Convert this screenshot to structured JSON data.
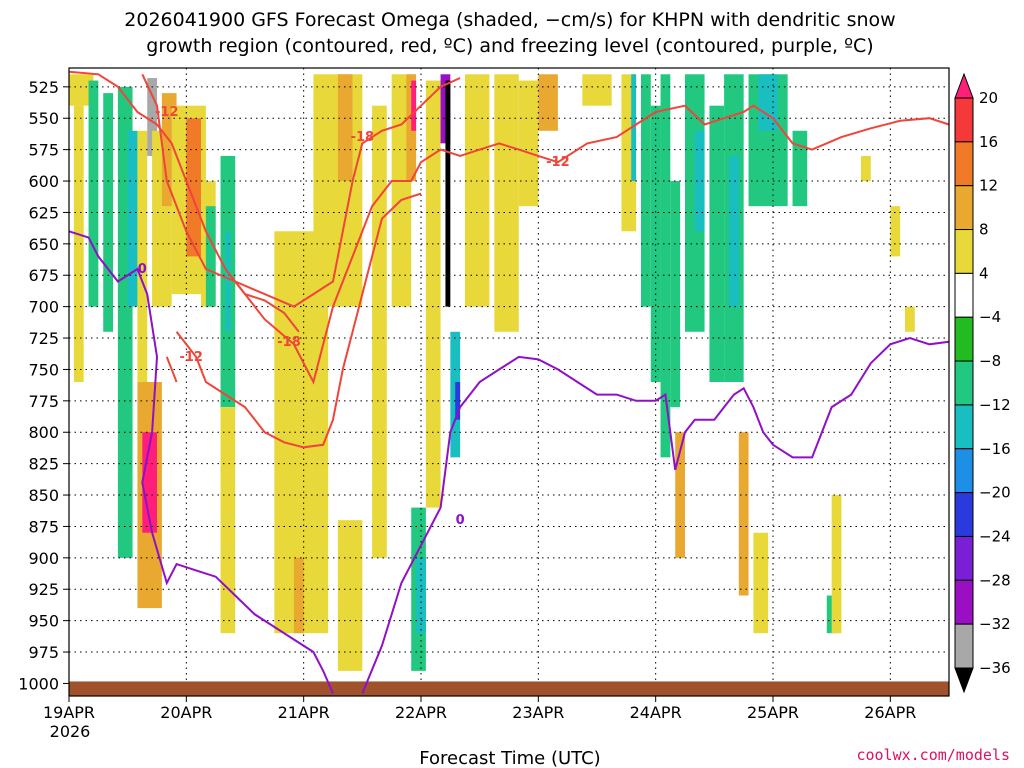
{
  "chart_data": {
    "type": "heatmap",
    "title_line1": "2026041900 GFS Forecast Omega (shaded, −cm/s) for KHPN with dendritic snow",
    "title_line2": "growth region (contoured, red, ºC) and freezing level (contoured, purple, ºC)",
    "xlabel": "Forecast Time (UTC)",
    "credit": "coolwx.com/models",
    "x_start_label": "19APR",
    "x_start_year": "2026",
    "xlim_hours": [
      0,
      180
    ],
    "ylim_hpa": [
      1010,
      510
    ],
    "x_ticks": [
      {
        "hour": 0,
        "label": "19APR"
      },
      {
        "hour": 24,
        "label": "20APR"
      },
      {
        "hour": 48,
        "label": "21APR"
      },
      {
        "hour": 72,
        "label": "22APR"
      },
      {
        "hour": 96,
        "label": "23APR"
      },
      {
        "hour": 120,
        "label": "24APR"
      },
      {
        "hour": 144,
        "label": "25APR"
      },
      {
        "hour": 168,
        "label": "26APR"
      }
    ],
    "y_ticks": [
      525,
      550,
      575,
      600,
      625,
      650,
      675,
      700,
      725,
      750,
      775,
      800,
      825,
      850,
      875,
      900,
      925,
      950,
      975,
      1000
    ],
    "colorbar": {
      "levels": [
        "20",
        "16",
        "12",
        "8",
        "4",
        "−4",
        "−8",
        "−12",
        "−16",
        "−20",
        "−24",
        "−28",
        "−32",
        "−36"
      ],
      "colors": [
        "#ff1f7a",
        "#f5383a",
        "#f07a28",
        "#e9a830",
        "#e8d83a",
        "#ffffff",
        "#22bb22",
        "#22c880",
        "#19bfc0",
        "#1e8fe6",
        "#2a3adf",
        "#7b1fd6",
        "#9b0fc4",
        "#a8a8a8",
        "#000000"
      ]
    },
    "omega_shading": [
      {
        "t0": 0,
        "t1": 5,
        "p0": 515,
        "p1": 540,
        "v": 6
      },
      {
        "t0": 1,
        "t1": 3,
        "p0": 540,
        "p1": 760,
        "v": 4
      },
      {
        "t0": 4,
        "t1": 6,
        "p0": 520,
        "p1": 700,
        "v": -8
      },
      {
        "t0": 7,
        "t1": 9,
        "p0": 530,
        "p1": 720,
        "v": -8
      },
      {
        "t0": 10,
        "t1": 13,
        "p0": 525,
        "p1": 900,
        "v": -8
      },
      {
        "t0": 12,
        "t1": 14,
        "p0": 560,
        "p1": 700,
        "v": -14
      },
      {
        "t0": 14,
        "t1": 16,
        "p0": 560,
        "p1": 760,
        "v": 6
      },
      {
        "t0": 14,
        "t1": 19,
        "p0": 760,
        "p1": 940,
        "v": 10
      },
      {
        "t0": 15,
        "t1": 18,
        "p0": 800,
        "p1": 880,
        "v": 20
      },
      {
        "t0": 16,
        "t1": 18,
        "p0": 518,
        "p1": 580,
        "v": -34
      },
      {
        "t0": 17,
        "t1": 21,
        "p0": 560,
        "p1": 700,
        "v": 6
      },
      {
        "t0": 19,
        "t1": 22,
        "p0": 530,
        "p1": 620,
        "v": 10
      },
      {
        "t0": 21,
        "t1": 28,
        "p0": 540,
        "p1": 690,
        "v": 6
      },
      {
        "t0": 24,
        "t1": 27,
        "p0": 550,
        "p1": 660,
        "v": 12
      },
      {
        "t0": 27,
        "t1": 30,
        "p0": 600,
        "p1": 700,
        "v": 6
      },
      {
        "t0": 28,
        "t1": 30,
        "p0": 620,
        "p1": 700,
        "v": -8
      },
      {
        "t0": 31,
        "t1": 34,
        "p0": 580,
        "p1": 780,
        "v": -10
      },
      {
        "t0": 32,
        "t1": 33,
        "p0": 640,
        "p1": 720,
        "v": -14
      },
      {
        "t0": 31,
        "t1": 34,
        "p0": 780,
        "p1": 960,
        "v": 5
      },
      {
        "t0": 42,
        "t1": 50,
        "p0": 640,
        "p1": 960,
        "v": 5
      },
      {
        "t0": 46,
        "t1": 48,
        "p0": 900,
        "p1": 960,
        "v": 10
      },
      {
        "t0": 50,
        "t1": 53,
        "p0": 700,
        "p1": 960,
        "v": 5
      },
      {
        "t0": 50,
        "t1": 60,
        "p0": 515,
        "p1": 700,
        "v": 5
      },
      {
        "t0": 55,
        "t1": 58,
        "p0": 515,
        "p1": 600,
        "v": 8
      },
      {
        "t0": 55,
        "t1": 60,
        "p0": 870,
        "p1": 990,
        "v": 5
      },
      {
        "t0": 62,
        "t1": 65,
        "p0": 540,
        "p1": 900,
        "v": 5
      },
      {
        "t0": 66,
        "t1": 70,
        "p0": 515,
        "p1": 700,
        "v": 5
      },
      {
        "t0": 69,
        "t1": 71,
        "p0": 515,
        "p1": 600,
        "v": 10
      },
      {
        "t0": 70,
        "t1": 71,
        "p0": 520,
        "p1": 560,
        "v": 20
      },
      {
        "t0": 70,
        "t1": 73,
        "p0": 860,
        "p1": 990,
        "v": -8
      },
      {
        "t0": 71,
        "t1": 73,
        "p0": 900,
        "p1": 960,
        "v": -12
      },
      {
        "t0": 73,
        "t1": 76,
        "p0": 520,
        "p1": 860,
        "v": 5
      },
      {
        "t0": 76,
        "t1": 78,
        "p0": 515,
        "p1": 570,
        "v": -28
      },
      {
        "t0": 77,
        "t1": 78,
        "p0": 520,
        "p1": 700,
        "v": -36
      },
      {
        "t0": 78,
        "t1": 80,
        "p0": 720,
        "p1": 820,
        "v": -14
      },
      {
        "t0": 79,
        "t1": 80,
        "p0": 760,
        "p1": 790,
        "v": -22
      },
      {
        "t0": 81,
        "t1": 86,
        "p0": 515,
        "p1": 700,
        "v": 5
      },
      {
        "t0": 87,
        "t1": 92,
        "p0": 515,
        "p1": 720,
        "v": 5
      },
      {
        "t0": 92,
        "t1": 96,
        "p0": 520,
        "p1": 620,
        "v": 5
      },
      {
        "t0": 96,
        "t1": 100,
        "p0": 515,
        "p1": 560,
        "v": 8
      },
      {
        "t0": 105,
        "t1": 111,
        "p0": 515,
        "p1": 540,
        "v": 5
      },
      {
        "t0": 113,
        "t1": 116,
        "p0": 515,
        "p1": 640,
        "v": 5
      },
      {
        "t0": 115,
        "t1": 116,
        "p0": 515,
        "p1": 600,
        "v": -14
      },
      {
        "t0": 117,
        "t1": 119,
        "p0": 515,
        "p1": 700,
        "v": -8
      },
      {
        "t0": 119,
        "t1": 121,
        "p0": 540,
        "p1": 760,
        "v": -8
      },
      {
        "t0": 121,
        "t1": 123,
        "p0": 515,
        "p1": 820,
        "v": -9
      },
      {
        "t0": 123,
        "t1": 125,
        "p0": 600,
        "p1": 780,
        "v": -8
      },
      {
        "t0": 124,
        "t1": 126,
        "p0": 800,
        "p1": 900,
        "v": 8
      },
      {
        "t0": 126,
        "t1": 130,
        "p0": 515,
        "p1": 720,
        "v": -9
      },
      {
        "t0": 128,
        "t1": 130,
        "p0": 560,
        "p1": 640,
        "v": -12
      },
      {
        "t0": 131,
        "t1": 134,
        "p0": 540,
        "p1": 760,
        "v": -8
      },
      {
        "t0": 134,
        "t1": 138,
        "p0": 515,
        "p1": 760,
        "v": -10
      },
      {
        "t0": 135,
        "t1": 137,
        "p0": 580,
        "p1": 700,
        "v": -14
      },
      {
        "t0": 137,
        "t1": 139,
        "p0": 800,
        "p1": 930,
        "v": 8
      },
      {
        "t0": 139,
        "t1": 147,
        "p0": 515,
        "p1": 620,
        "v": -9
      },
      {
        "t0": 141,
        "t1": 145,
        "p0": 515,
        "p1": 560,
        "v": -13
      },
      {
        "t0": 140,
        "t1": 143,
        "p0": 880,
        "p1": 960,
        "v": 5
      },
      {
        "t0": 148,
        "t1": 151,
        "p0": 560,
        "p1": 620,
        "v": -8
      },
      {
        "t0": 155,
        "t1": 157,
        "p0": 930,
        "p1": 960,
        "v": -8
      },
      {
        "t0": 156,
        "t1": 158,
        "p0": 850,
        "p1": 960,
        "v": 5
      },
      {
        "t0": 162,
        "t1": 164,
        "p0": 580,
        "p1": 600,
        "v": 5
      },
      {
        "t0": 168,
        "t1": 170,
        "p0": 620,
        "p1": 660,
        "v": 5
      },
      {
        "t0": 171,
        "t1": 173,
        "p0": 700,
        "p1": 720,
        "v": 5
      }
    ],
    "dgz_contours": [
      {
        "label": "-12",
        "label_at": [
          20,
          545
        ],
        "points": [
          [
            0,
            513
          ],
          [
            6,
            515
          ],
          [
            10,
            525
          ],
          [
            14,
            545
          ],
          [
            18,
            555
          ],
          [
            21,
            570
          ],
          [
            24,
            600
          ],
          [
            28,
            640
          ],
          [
            32,
            670
          ],
          [
            36,
            690
          ],
          [
            40,
            695
          ],
          [
            44,
            705
          ],
          [
            47,
            720
          ]
        ]
      },
      {
        "label": "-18",
        "label_at": [
          60,
          565
        ],
        "points": [
          [
            15,
            515
          ],
          [
            18,
            540
          ],
          [
            20,
            600
          ],
          [
            24,
            640
          ],
          [
            28,
            670
          ],
          [
            34,
            680
          ],
          [
            40,
            690
          ],
          [
            46,
            700
          ],
          [
            50,
            690
          ],
          [
            54,
            680
          ],
          [
            56,
            640
          ],
          [
            58,
            600
          ],
          [
            60,
            570
          ],
          [
            64,
            560
          ],
          [
            68,
            555
          ],
          [
            72,
            540
          ],
          [
            76,
            525
          ],
          [
            80,
            518
          ]
        ]
      },
      {
        "label": "-12",
        "label_at": [
          100,
          585
        ],
        "points": [
          [
            32,
            670
          ],
          [
            40,
            710
          ],
          [
            46,
            730
          ],
          [
            50,
            760
          ],
          [
            54,
            700
          ],
          [
            58,
            660
          ],
          [
            62,
            620
          ],
          [
            66,
            600
          ],
          [
            70,
            600
          ],
          [
            72,
            585
          ],
          [
            76,
            575
          ],
          [
            80,
            580
          ],
          [
            84,
            575
          ],
          [
            88,
            570
          ],
          [
            92,
            575
          ],
          [
            96,
            580
          ],
          [
            100,
            585
          ],
          [
            106,
            570
          ],
          [
            112,
            565
          ],
          [
            116,
            555
          ],
          [
            120,
            545
          ],
          [
            126,
            540
          ],
          [
            130,
            555
          ],
          [
            134,
            550
          ],
          [
            138,
            545
          ],
          [
            140,
            540
          ],
          [
            144,
            550
          ],
          [
            148,
            570
          ],
          [
            152,
            575
          ],
          [
            158,
            565
          ],
          [
            164,
            558
          ],
          [
            170,
            552
          ],
          [
            176,
            550
          ],
          [
            180,
            555
          ]
        ]
      },
      {
        "label": "-18",
        "label_at": [
          45,
          728
        ],
        "points": [
          [
            22,
            720
          ],
          [
            24,
            730
          ],
          [
            26,
            740
          ],
          [
            28,
            760
          ],
          [
            32,
            770
          ],
          [
            36,
            780
          ],
          [
            40,
            800
          ],
          [
            44,
            808
          ],
          [
            48,
            812
          ],
          [
            52,
            810
          ],
          [
            54,
            790
          ],
          [
            56,
            750
          ],
          [
            58,
            720
          ],
          [
            60,
            690
          ],
          [
            62,
            660
          ],
          [
            64,
            630
          ],
          [
            68,
            615
          ],
          [
            72,
            610
          ]
        ]
      },
      {
        "label": "-12",
        "label_at": [
          25,
          740
        ],
        "points": [
          [
            20,
            740
          ],
          [
            22,
            760
          ]
        ]
      }
    ],
    "freezing_contours": [
      {
        "label": "0",
        "label_at": [
          15,
          670
        ],
        "points": [
          [
            0,
            640
          ],
          [
            4,
            645
          ],
          [
            6,
            660
          ],
          [
            8,
            670
          ],
          [
            10,
            680
          ],
          [
            14,
            670
          ],
          [
            16,
            690
          ],
          [
            18,
            740
          ],
          [
            17,
            800
          ],
          [
            15,
            840
          ],
          [
            17,
            880
          ],
          [
            20,
            920
          ],
          [
            22,
            905
          ],
          [
            26,
            910
          ],
          [
            30,
            915
          ],
          [
            34,
            930
          ],
          [
            38,
            945
          ],
          [
            42,
            955
          ],
          [
            46,
            965
          ],
          [
            50,
            975
          ],
          [
            52,
            990
          ],
          [
            54,
            1008
          ]
        ]
      },
      {
        "label": "0",
        "label_at": [
          80,
          870
        ],
        "points": [
          [
            60,
            1008
          ],
          [
            64,
            970
          ],
          [
            68,
            920
          ],
          [
            72,
            890
          ],
          [
            76,
            860
          ],
          [
            78,
            800
          ],
          [
            80,
            780
          ],
          [
            84,
            760
          ],
          [
            88,
            750
          ],
          [
            92,
            740
          ],
          [
            96,
            742
          ],
          [
            100,
            750
          ],
          [
            104,
            760
          ],
          [
            108,
            770
          ],
          [
            112,
            770
          ],
          [
            116,
            775
          ],
          [
            120,
            775
          ],
          [
            122,
            770
          ],
          [
            124,
            830
          ],
          [
            126,
            800
          ],
          [
            128,
            790
          ],
          [
            132,
            790
          ],
          [
            134,
            780
          ],
          [
            136,
            770
          ],
          [
            138,
            765
          ],
          [
            140,
            780
          ],
          [
            142,
            800
          ],
          [
            144,
            810
          ],
          [
            148,
            820
          ],
          [
            152,
            820
          ],
          [
            156,
            780
          ],
          [
            160,
            770
          ],
          [
            164,
            745
          ],
          [
            168,
            730
          ],
          [
            172,
            725
          ],
          [
            176,
            730
          ],
          [
            180,
            728
          ]
        ]
      }
    ]
  }
}
